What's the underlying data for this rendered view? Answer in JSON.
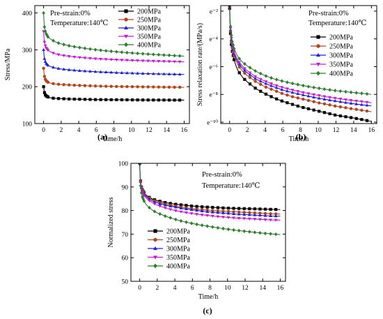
{
  "colors": {
    "200MPa": "#000000",
    "250MPa": "#b2451c",
    "300MPa": "#1f21d6",
    "350MPa": "#c41ad0",
    "400MPa": "#2f7d2f"
  },
  "chart_data": [
    {
      "id": "a",
      "type": "line",
      "panel_label": "(a)",
      "annotation": [
        "Pre-strain:0%",
        "Temperature:140℃"
      ],
      "xlabel": "Time/h",
      "ylabel": "Stress/MPa",
      "xlim": [
        -1,
        16.6
      ],
      "ylim": [
        100,
        420
      ],
      "xticks": [
        0,
        2,
        4,
        6,
        8,
        10,
        12,
        14,
        16
      ],
      "yticks": [
        100,
        200,
        300,
        400
      ],
      "legend_position": "top-right",
      "series": [
        {
          "name": "200MPa",
          "marker": "square",
          "x": [
            0,
            0.05,
            0.1,
            0.2,
            0.3,
            0.5,
            0.75,
            1,
            1.5,
            2,
            3,
            4,
            5,
            6,
            7,
            8,
            9,
            10,
            11,
            12,
            13,
            14,
            15,
            16
          ],
          "y": [
            200,
            190,
            184,
            178,
            175,
            172,
            170,
            169,
            168,
            167.5,
            166.5,
            166,
            165.5,
            165,
            164.8,
            164.6,
            164.4,
            164.2,
            164,
            163.9,
            163.8,
            163.7,
            163.6,
            163.5
          ]
        },
        {
          "name": "250MPa",
          "marker": "circle",
          "x": [
            0,
            0.05,
            0.1,
            0.2,
            0.3,
            0.5,
            0.75,
            1,
            1.5,
            2,
            3,
            4,
            5,
            6,
            7,
            8,
            9,
            10,
            11,
            12,
            13,
            14,
            15,
            16
          ],
          "y": [
            250,
            236,
            228,
            220,
            216,
            212,
            210,
            208.5,
            207,
            206,
            204.5,
            203.5,
            202.5,
            201.8,
            201.2,
            200.7,
            200.3,
            200,
            199.7,
            199.4,
            199.1,
            198.8,
            198.6,
            198.4
          ]
        },
        {
          "name": "300MPa",
          "marker": "triangle-up",
          "x": [
            0,
            0.05,
            0.1,
            0.2,
            0.3,
            0.5,
            0.75,
            1,
            1.5,
            2,
            3,
            4,
            5,
            6,
            7,
            8,
            9,
            10,
            11,
            12,
            13,
            14,
            15,
            16
          ],
          "y": [
            300,
            285,
            276,
            268,
            263,
            258,
            255,
            253,
            250,
            248,
            245.5,
            243.5,
            242,
            240.5,
            239.5,
            238.5,
            237.5,
            236.8,
            236,
            235.4,
            234.8,
            234.3,
            233.8,
            233.3
          ]
        },
        {
          "name": "350MPa",
          "marker": "triangle-down",
          "x": [
            0,
            0.05,
            0.1,
            0.2,
            0.3,
            0.5,
            0.75,
            1,
            1.5,
            2,
            3,
            4,
            5,
            6,
            7,
            8,
            9,
            10,
            11,
            12,
            13,
            14,
            15,
            16
          ],
          "y": [
            350,
            331,
            321,
            311,
            305,
            299,
            295,
            292,
            288,
            285.5,
            282,
            279.5,
            277.5,
            275.8,
            274.5,
            273.3,
            272.3,
            271.4,
            270.6,
            269.9,
            269.2,
            268.6,
            268,
            267.5
          ]
        },
        {
          "name": "400MPa",
          "marker": "diamond",
          "x": [
            0,
            0.05,
            0.1,
            0.2,
            0.3,
            0.5,
            0.75,
            1,
            1.5,
            2,
            3,
            4,
            5,
            6,
            7,
            8,
            9,
            10,
            11,
            12,
            13,
            14,
            15,
            16
          ],
          "y": [
            400,
            375,
            362,
            350,
            343,
            335,
            330,
            326,
            320,
            316,
            310.5,
            306.5,
            303,
            300,
            297.5,
            295.3,
            293.3,
            291.5,
            289.8,
            288.3,
            286.8,
            285.4,
            284.1,
            282.8
          ]
        }
      ]
    },
    {
      "id": "b",
      "type": "line",
      "panel_label": "(b)",
      "annotation": [
        "Pre-strain:0%",
        "Temperature:140℃"
      ],
      "xlabel": "Time/h",
      "ylabel": "Stress relaxation rate/(MPa/s)",
      "y_scale": "natural log (base e)",
      "xlim": [
        -1,
        16.6
      ],
      "ylim": [
        -10.1,
        -1.6
      ],
      "xticks": [
        0,
        2,
        4,
        6,
        8,
        10,
        12,
        14,
        16
      ],
      "yticks": [
        -10,
        -8,
        -6,
        -4,
        -2
      ],
      "ytick_labels": [
        "e⁻¹⁰",
        "e⁻⁸",
        "e⁻⁶",
        "e⁻⁴",
        "e⁻²"
      ],
      "legend_position": "top-right",
      "series": [
        {
          "name": "200MPa",
          "marker": "square",
          "x": [
            0,
            0.05,
            0.1,
            0.2,
            0.3,
            0.5,
            0.75,
            1,
            1.5,
            2,
            3,
            4,
            5,
            6,
            7,
            8,
            9,
            10,
            11,
            12,
            13,
            14,
            15,
            16
          ],
          "y": [
            -1.8,
            -2.9,
            -3.6,
            -4.4,
            -4.9,
            -5.5,
            -6,
            -6.35,
            -6.8,
            -7.1,
            -7.6,
            -7.95,
            -8.25,
            -8.5,
            -8.7,
            -8.9,
            -9.05,
            -9.2,
            -9.35,
            -9.5,
            -9.6,
            -9.7,
            -9.82,
            -9.95
          ]
        },
        {
          "name": "250MPa",
          "marker": "circle",
          "x": [
            0,
            0.05,
            0.1,
            0.2,
            0.3,
            0.5,
            0.75,
            1,
            1.5,
            2,
            3,
            4,
            5,
            6,
            7,
            8,
            9,
            10,
            11,
            12,
            13,
            14,
            15,
            16
          ],
          "y": [
            -1.7,
            -2.8,
            -3.45,
            -4.2,
            -4.65,
            -5.2,
            -5.6,
            -5.95,
            -6.35,
            -6.65,
            -7.1,
            -7.45,
            -7.7,
            -7.95,
            -8.15,
            -8.3,
            -8.45,
            -8.6,
            -8.72,
            -8.85,
            -8.95,
            -9.05,
            -9.15,
            -9.25
          ]
        },
        {
          "name": "300MPa",
          "marker": "triangle-up",
          "x": [
            0,
            0.05,
            0.1,
            0.2,
            0.3,
            0.5,
            0.75,
            1,
            1.5,
            2,
            3,
            4,
            5,
            6,
            7,
            8,
            9,
            10,
            11,
            12,
            13,
            14,
            15,
            16
          ],
          "y": [
            -1.6,
            -2.7,
            -3.35,
            -4.05,
            -4.5,
            -5.05,
            -5.45,
            -5.75,
            -6.15,
            -6.45,
            -6.9,
            -7.2,
            -7.45,
            -7.68,
            -7.85,
            -8,
            -8.14,
            -8.27,
            -8.38,
            -8.48,
            -8.58,
            -8.67,
            -8.75,
            -8.82
          ]
        },
        {
          "name": "350MPa",
          "marker": "triangle-down",
          "x": [
            0,
            0.05,
            0.1,
            0.2,
            0.3,
            0.5,
            0.75,
            1,
            1.5,
            2,
            3,
            4,
            5,
            6,
            7,
            8,
            9,
            10,
            11,
            12,
            13,
            14,
            15,
            16
          ],
          "y": [
            -1.6,
            -2.6,
            -3.25,
            -3.95,
            -4.4,
            -4.95,
            -5.3,
            -5.6,
            -6,
            -6.3,
            -6.75,
            -7.05,
            -7.3,
            -7.5,
            -7.67,
            -7.82,
            -7.95,
            -8.07,
            -8.18,
            -8.28,
            -8.37,
            -8.45,
            -8.52,
            -8.6
          ]
        },
        {
          "name": "400MPa",
          "marker": "diamond",
          "x": [
            0,
            0.05,
            0.1,
            0.2,
            0.3,
            0.5,
            0.75,
            1,
            1.5,
            2,
            3,
            4,
            5,
            6,
            7,
            8,
            9,
            10,
            11,
            12,
            13,
            14,
            15,
            16
          ],
          "y": [
            -1.5,
            -2.5,
            -3.1,
            -3.75,
            -4.2,
            -4.7,
            -5.05,
            -5.35,
            -5.7,
            -5.95,
            -6.35,
            -6.65,
            -6.88,
            -7.05,
            -7.2,
            -7.33,
            -7.45,
            -7.55,
            -7.65,
            -7.73,
            -7.8,
            -7.87,
            -7.93,
            -8
          ]
        }
      ]
    },
    {
      "id": "c",
      "type": "line",
      "panel_label": "(c)",
      "annotation": [
        "Pre-strain:0%",
        "Temperature:140℃"
      ],
      "xlabel": "Time/h",
      "ylabel": "Normalized stress",
      "xlim": [
        -1,
        16.6
      ],
      "ylim": [
        50,
        100
      ],
      "xticks": [
        0,
        2,
        4,
        6,
        8,
        10,
        12,
        14,
        16
      ],
      "yticks": [
        50,
        60,
        70,
        80,
        90,
        100
      ],
      "legend_position": "left",
      "series": [
        {
          "name": "200MPa",
          "marker": "square",
          "x": [
            0,
            0.05,
            0.1,
            0.2,
            0.3,
            0.5,
            0.75,
            1,
            1.5,
            2,
            3,
            4,
            5,
            6,
            7,
            8,
            9,
            10,
            11,
            12,
            13,
            14,
            15,
            16
          ],
          "y": [
            100,
            95,
            92.5,
            90,
            88.8,
            87.5,
            86.5,
            85.8,
            84.8,
            84.2,
            83.3,
            82.7,
            82.3,
            81.9,
            81.6,
            81.4,
            81.2,
            81,
            80.9,
            80.8,
            80.7,
            80.6,
            80.5,
            80.4
          ]
        },
        {
          "name": "250MPa",
          "marker": "circle",
          "x": [
            0,
            0.05,
            0.1,
            0.2,
            0.3,
            0.5,
            0.75,
            1,
            1.5,
            2,
            3,
            4,
            5,
            6,
            7,
            8,
            9,
            10,
            11,
            12,
            13,
            14,
            15,
            16
          ],
          "y": [
            100,
            95,
            92.3,
            89.8,
            88.5,
            87.2,
            86.2,
            85.5,
            84.4,
            83.7,
            82.6,
            81.9,
            81.3,
            80.8,
            80.4,
            80.1,
            79.8,
            79.6,
            79.4,
            79.2,
            79,
            78.8,
            78.6,
            78.5
          ]
        },
        {
          "name": "300MPa",
          "marker": "triangle-up",
          "x": [
            0,
            0.05,
            0.1,
            0.2,
            0.3,
            0.5,
            0.75,
            1,
            1.5,
            2,
            3,
            4,
            5,
            6,
            7,
            8,
            9,
            10,
            11,
            12,
            13,
            14,
            15,
            16
          ],
          "y": [
            100,
            95,
            92.2,
            89.6,
            88.2,
            86.9,
            85.8,
            85,
            83.9,
            83.2,
            82.2,
            81.5,
            80.8,
            80.3,
            79.8,
            79.4,
            79.1,
            78.8,
            78.5,
            78.3,
            78.1,
            77.9,
            77.7,
            77.6
          ]
        },
        {
          "name": "350MPa",
          "marker": "triangle-down",
          "x": [
            0,
            0.05,
            0.1,
            0.2,
            0.3,
            0.5,
            0.75,
            1,
            1.5,
            2,
            3,
            4,
            5,
            6,
            7,
            8,
            9,
            10,
            11,
            12,
            13,
            14,
            15,
            16
          ],
          "y": [
            100,
            94.8,
            91.8,
            89.2,
            87.8,
            86.3,
            85.2,
            84.4,
            83.2,
            82.3,
            81,
            80,
            79.3,
            78.7,
            78.2,
            77.8,
            77.4,
            77.1,
            76.8,
            76.6,
            76.4,
            76.2,
            76,
            75.9
          ]
        },
        {
          "name": "400MPa",
          "marker": "diamond",
          "x": [
            0,
            0.05,
            0.1,
            0.2,
            0.3,
            0.5,
            0.75,
            1,
            1.5,
            2,
            3,
            4,
            5,
            6,
            7,
            8,
            9,
            10,
            11,
            12,
            13,
            14,
            15,
            16
          ],
          "y": [
            100,
            94,
            90.5,
            87.5,
            85.8,
            84,
            82.5,
            81.5,
            80,
            79,
            77.5,
            76.3,
            75.3,
            74.5,
            73.8,
            73.2,
            72.6,
            72.1,
            71.6,
            71.2,
            70.8,
            70.4,
            70.1,
            69.8
          ]
        }
      ]
    }
  ]
}
